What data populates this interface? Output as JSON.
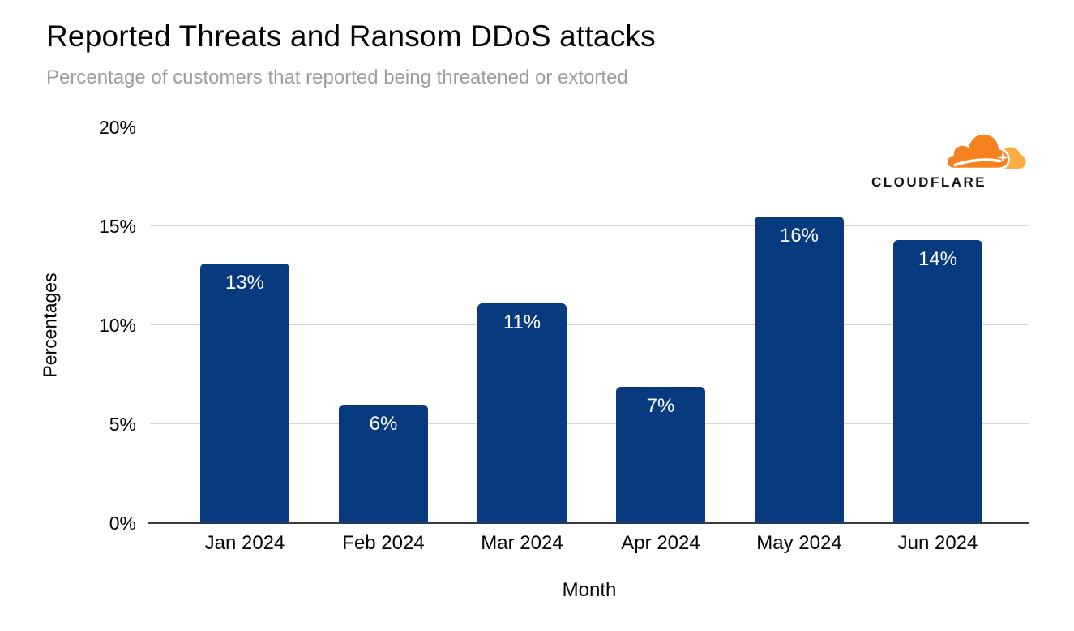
{
  "header": {
    "title": "Reported Threats and Ransom DDoS attacks",
    "subtitle": "Percentage of customers that reported being threatened or extorted"
  },
  "branding": {
    "logo_text": "CLOUDFLARE",
    "cloud_main_color": "#F6821F",
    "cloud_light_color": "#FBAD41"
  },
  "chart_data": {
    "type": "bar",
    "title": "Reported Threats and Ransom DDoS attacks",
    "subtitle": "Percentage of customers that reported being threatened or extorted",
    "categories": [
      "Jan 2024",
      "Feb 2024",
      "Mar 2024",
      "Apr 2024",
      "May 2024",
      "Jun 2024"
    ],
    "values": [
      13.1,
      6.0,
      11.1,
      6.9,
      15.5,
      14.3
    ],
    "value_labels": [
      "13%",
      "6%",
      "11%",
      "7%",
      "16%",
      "14%"
    ],
    "xlabel": "Month",
    "ylabel": "Percentages",
    "ylim": [
      0,
      20
    ],
    "ytick_step": 5,
    "ytick_labels": [
      "0%",
      "5%",
      "10%",
      "15%",
      "20%"
    ],
    "grid": true,
    "legend": "none",
    "bar_color": "#083a7f",
    "bar_label_color": "#ffffff",
    "gridline_color": "#d6d6d6",
    "axis_line_color": "#3c3c3c"
  }
}
